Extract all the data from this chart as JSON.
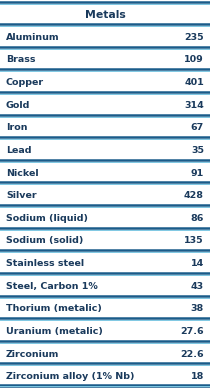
{
  "title": "Metals",
  "rows": [
    [
      "Aluminum",
      "235"
    ],
    [
      "Brass",
      "109"
    ],
    [
      "Copper",
      "401"
    ],
    [
      "Gold",
      "314"
    ],
    [
      "Iron",
      "67"
    ],
    [
      "Lead",
      "35"
    ],
    [
      "Nickel",
      "91"
    ],
    [
      "Silver",
      "428"
    ],
    [
      "Sodium (liquid)",
      "86"
    ],
    [
      "Sodium (solid)",
      "135"
    ],
    [
      "Stainless steel",
      "14"
    ],
    [
      "Steel, Carbon 1%",
      "43"
    ],
    [
      "Thorium (metalic)",
      "38"
    ],
    [
      "Uranium (metalic)",
      "27.6"
    ],
    [
      "Zirconium",
      "22.6"
    ],
    [
      "Zirconium alloy (1% Nb)",
      "18"
    ]
  ],
  "bg_color": "#ffffff",
  "text_color": "#1a3a5c",
  "line_color_dark": "#1a5c8a",
  "line_color_light": "#7ec8e3",
  "font_size": 6.8,
  "header_font_size": 7.8
}
